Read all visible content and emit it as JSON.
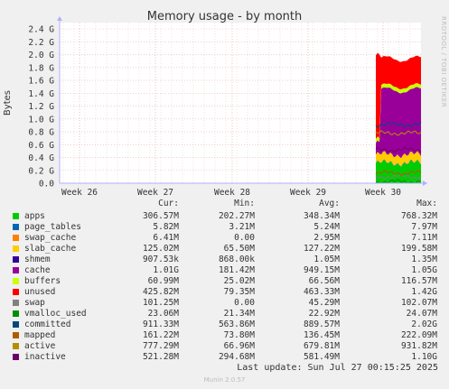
{
  "chart_data": {
    "type": "area",
    "title": "Memory usage - by month",
    "ylabel": "Bytes",
    "side_label": "RRDTOOL / TOBI OETIKER",
    "y_ticks": [
      "0.0",
      "0.2 G",
      "0.4 G",
      "0.6 G",
      "0.8 G",
      "1.0 G",
      "1.2 G",
      "1.4 G",
      "1.6 G",
      "1.8 G",
      "2.0 G",
      "2.2 G",
      "2.4 G"
    ],
    "y_range_gb": [
      0,
      2.5
    ],
    "x_ticks": [
      "Week 26",
      "Week 27",
      "Week 28",
      "Week 29",
      "Week 30"
    ],
    "grid": true,
    "data_region": "only final days (Week 30) contain data",
    "stacked_series_gb": [
      {
        "name": "apps",
        "color": "#00cc00",
        "approx_level": 0.31
      },
      {
        "name": "page_tables",
        "color": "#0066b3",
        "approx_level": 0.006
      },
      {
        "name": "swap_cache",
        "color": "#ff8000",
        "approx_level": 0.006
      },
      {
        "name": "slab_cache",
        "color": "#ffcc00",
        "approx_level": 0.125
      },
      {
        "name": "shmem",
        "color": "#330099",
        "approx_level": 0.001
      },
      {
        "name": "cache",
        "color": "#990099",
        "approx_level": 1.01
      },
      {
        "name": "buffers",
        "color": "#ccff00",
        "approx_level": 0.061
      },
      {
        "name": "unused",
        "color": "#ff0000",
        "approx_level": 0.426
      }
    ],
    "line_series_gb": [
      {
        "name": "swap",
        "color": "#808080",
        "approx_level": 0.1
      },
      {
        "name": "vmalloc_used",
        "color": "#008f00",
        "approx_level": 0.023
      },
      {
        "name": "committed",
        "color": "#00487d",
        "approx_level": 0.91
      },
      {
        "name": "mapped",
        "color": "#b35a00",
        "approx_level": 0.16
      },
      {
        "name": "active",
        "color": "#b38f00",
        "approx_level": 0.78
      },
      {
        "name": "inactive",
        "color": "#6b006b",
        "approx_level": 0.52
      }
    ]
  },
  "legend": {
    "headers": {
      "cur": "Cur:",
      "min": "Min:",
      "avg": "Avg:",
      "max": "Max:"
    },
    "rows": [
      {
        "name": "apps",
        "color": "#00cc00",
        "cur": "306.57M",
        "min": "202.27M",
        "avg": "348.34M",
        "max": "768.32M"
      },
      {
        "name": "page_tables",
        "color": "#0066b3",
        "cur": "5.82M",
        "min": "3.21M",
        "avg": "5.24M",
        "max": "7.97M"
      },
      {
        "name": "swap_cache",
        "color": "#ff8000",
        "cur": "6.41M",
        "min": "0.00",
        "avg": "2.95M",
        "max": "7.11M"
      },
      {
        "name": "slab_cache",
        "color": "#ffcc00",
        "cur": "125.02M",
        "min": "65.50M",
        "avg": "127.22M",
        "max": "199.58M"
      },
      {
        "name": "shmem",
        "color": "#330099",
        "cur": "907.53k",
        "min": "868.00k",
        "avg": "1.05M",
        "max": "1.35M"
      },
      {
        "name": "cache",
        "color": "#990099",
        "cur": "1.01G",
        "min": "181.42M",
        "avg": "949.15M",
        "max": "1.05G"
      },
      {
        "name": "buffers",
        "color": "#ccff00",
        "cur": "60.99M",
        "min": "25.02M",
        "avg": "66.56M",
        "max": "116.57M"
      },
      {
        "name": "unused",
        "color": "#ff0000",
        "cur": "425.82M",
        "min": "79.35M",
        "avg": "463.33M",
        "max": "1.42G"
      },
      {
        "name": "swap",
        "color": "#808080",
        "cur": "101.25M",
        "min": "0.00",
        "avg": "45.29M",
        "max": "102.07M"
      },
      {
        "name": "vmalloc_used",
        "color": "#008f00",
        "cur": "23.06M",
        "min": "21.34M",
        "avg": "22.92M",
        "max": "24.07M"
      },
      {
        "name": "committed",
        "color": "#00487d",
        "cur": "911.33M",
        "min": "563.86M",
        "avg": "889.57M",
        "max": "2.02G"
      },
      {
        "name": "mapped",
        "color": "#b35a00",
        "cur": "161.22M",
        "min": "73.80M",
        "avg": "136.45M",
        "max": "222.09M"
      },
      {
        "name": "active",
        "color": "#b38f00",
        "cur": "777.29M",
        "min": "66.96M",
        "avg": "679.81M",
        "max": "931.82M"
      },
      {
        "name": "inactive",
        "color": "#6b006b",
        "cur": "521.28M",
        "min": "294.68M",
        "avg": "581.49M",
        "max": "1.10G"
      }
    ]
  },
  "footer": {
    "last_update": "Last update: Sun Jul 27 00:15:25 2025",
    "munin": "Munin 2.0.57"
  }
}
